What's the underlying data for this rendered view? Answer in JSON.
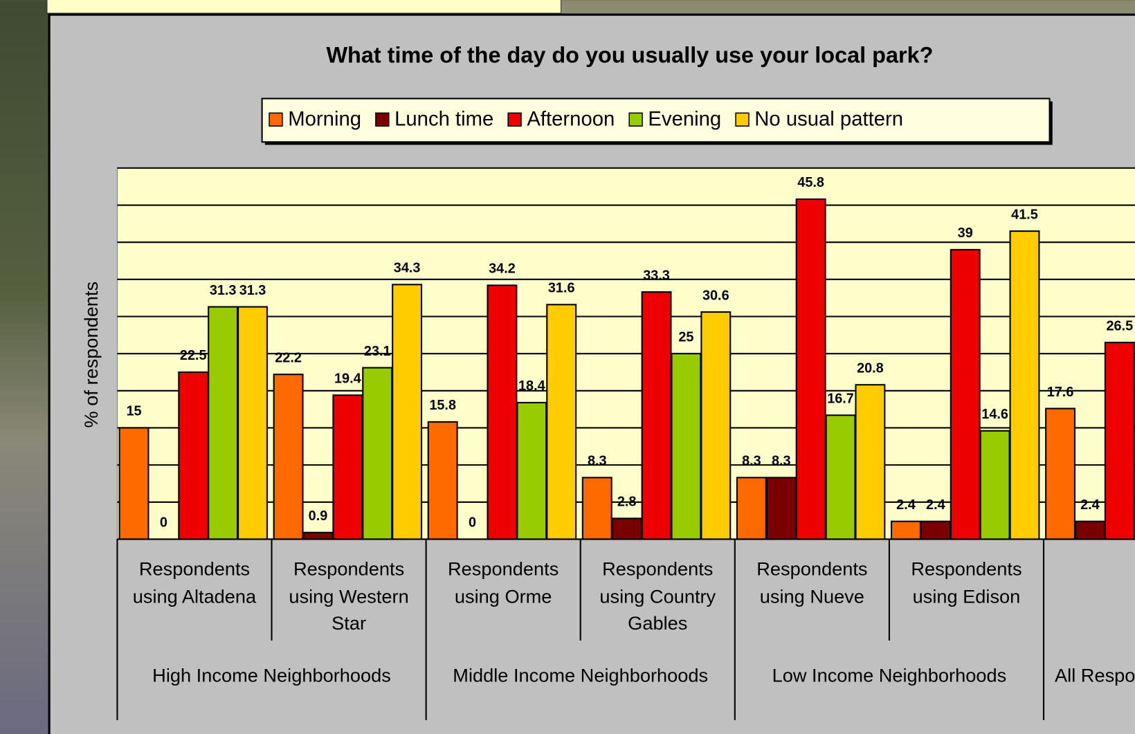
{
  "chart_data": {
    "type": "bar",
    "title": "What time of the day do you usually use your local park?",
    "y_label": "% of respondents",
    "groups": [
      {
        "name": "High Income Neighborhoods",
        "categories": [
          "Respondents using Altadena",
          "Respondents using Western Star"
        ]
      },
      {
        "name": "Middle Income Neighborhoods",
        "categories": [
          "Respondents using Orme",
          "Respondents using Country Gables"
        ]
      },
      {
        "name": "Low Income Neighborhoods",
        "categories": [
          "Respondents using Nueve",
          "Respondents using Edison"
        ]
      },
      {
        "name": "All Respondents",
        "categories": [
          null
        ]
      }
    ],
    "series": [
      {
        "name": "Morning",
        "color": "#ff6a00",
        "values": [
          15,
          22.2,
          15.8,
          8.3,
          8.3,
          2.4,
          17.6
        ]
      },
      {
        "name": "Lunch time",
        "color": "#7a0000",
        "values": [
          0,
          0.9,
          0,
          2.8,
          8.3,
          2.4,
          2.4
        ]
      },
      {
        "name": "Afternoon",
        "color": "#ee0000",
        "values": [
          22.5,
          19.4,
          34.2,
          33.3,
          45.8,
          39,
          26.5
        ]
      },
      {
        "name": "Evening",
        "color": "#99cc00",
        "values": [
          31.3,
          23.1,
          18.4,
          25,
          16.7,
          14.6,
          null
        ]
      },
      {
        "name": "No usual pattern",
        "color": "#ffcc00",
        "values": [
          31.3,
          34.3,
          31.6,
          30.6,
          20.8,
          41.5,
          null
        ]
      }
    ],
    "ylim": [
      0,
      50
    ],
    "yticks": [
      0,
      5,
      10,
      15,
      20,
      25,
      30,
      35,
      40,
      45,
      50
    ],
    "grid": true
  }
}
